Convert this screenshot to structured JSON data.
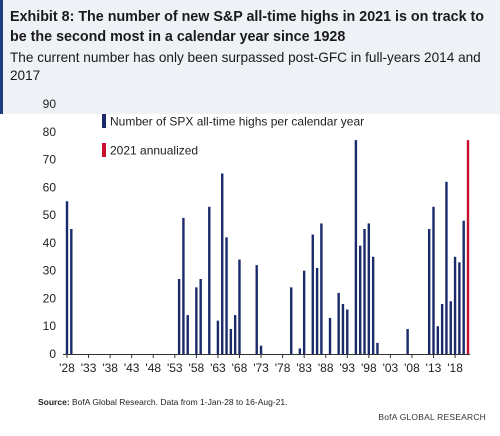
{
  "header": {
    "title": "Exhibit 8: The number of new S&P all-time highs in 2021 is on track to be the second most in a calendar year since 1928",
    "subtitle": "The current number has only been surpassed post-GFC in full-years 2014 and 2017"
  },
  "footer": {
    "source_label": "Source:",
    "source_text": " BofA Global Research. Data from 1-Jan-28 to 16-Aug-21.",
    "brand": "BofA GLOBAL RESEARCH"
  },
  "colors": {
    "navy": "#1b2a6b",
    "red": "#c8102e",
    "header_bg": "#eef1f5",
    "accent": "#1f3d7a"
  },
  "chart_data": {
    "type": "bar",
    "title": "",
    "xlabel": "",
    "ylabel": "",
    "ylim": [
      0,
      90
    ],
    "yticks": [
      0,
      10,
      20,
      30,
      40,
      50,
      60,
      70,
      80,
      90
    ],
    "xlim": [
      1928,
      2021
    ],
    "xtick_years": [
      1928,
      1933,
      1938,
      1943,
      1948,
      1953,
      1958,
      1963,
      1968,
      1973,
      1978,
      1983,
      1988,
      1993,
      1998,
      2003,
      2008,
      2013,
      2018
    ],
    "xtick_labels": [
      "'28",
      "'33",
      "'38",
      "'43",
      "'48",
      "'53",
      "'58",
      "'63",
      "'68",
      "'73",
      "'78",
      "'83",
      "'88",
      "'93",
      "'98",
      "'03",
      "'08",
      "'13",
      "'18"
    ],
    "grid": false,
    "legend_position": "top-left",
    "series": [
      {
        "name": "Number of SPX all-time highs per calendar year",
        "color": "#1b2a6b",
        "points": [
          {
            "year": 1928,
            "value": 55
          },
          {
            "year": 1929,
            "value": 45
          },
          {
            "year": 1954,
            "value": 27
          },
          {
            "year": 1955,
            "value": 49
          },
          {
            "year": 1956,
            "value": 14
          },
          {
            "year": 1958,
            "value": 24
          },
          {
            "year": 1959,
            "value": 27
          },
          {
            "year": 1961,
            "value": 53
          },
          {
            "year": 1963,
            "value": 12
          },
          {
            "year": 1964,
            "value": 65
          },
          {
            "year": 1965,
            "value": 42
          },
          {
            "year": 1966,
            "value": 9
          },
          {
            "year": 1967,
            "value": 14
          },
          {
            "year": 1968,
            "value": 34
          },
          {
            "year": 1972,
            "value": 32
          },
          {
            "year": 1973,
            "value": 3
          },
          {
            "year": 1980,
            "value": 24
          },
          {
            "year": 1982,
            "value": 2
          },
          {
            "year": 1983,
            "value": 30
          },
          {
            "year": 1985,
            "value": 43
          },
          {
            "year": 1986,
            "value": 31
          },
          {
            "year": 1987,
            "value": 47
          },
          {
            "year": 1989,
            "value": 13
          },
          {
            "year": 1991,
            "value": 22
          },
          {
            "year": 1992,
            "value": 18
          },
          {
            "year": 1993,
            "value": 16
          },
          {
            "year": 1995,
            "value": 77
          },
          {
            "year": 1996,
            "value": 39
          },
          {
            "year": 1997,
            "value": 45
          },
          {
            "year": 1998,
            "value": 47
          },
          {
            "year": 1999,
            "value": 35
          },
          {
            "year": 2000,
            "value": 4
          },
          {
            "year": 2007,
            "value": 9
          },
          {
            "year": 2012,
            "value": 45
          },
          {
            "year": 2013,
            "value": 53
          },
          {
            "year": 2014,
            "value": 10
          },
          {
            "year": 2015,
            "value": 18
          },
          {
            "year": 2016,
            "value": 62
          },
          {
            "year": 2017,
            "value": 19
          },
          {
            "year": 2018,
            "value": 35
          },
          {
            "year": 2019,
            "value": 33
          },
          {
            "year": 2020,
            "value": 48
          }
        ]
      },
      {
        "name": "2021 annualized",
        "color": "#c8102e",
        "points": [
          {
            "year": 2021,
            "value": 77
          }
        ]
      }
    ]
  }
}
